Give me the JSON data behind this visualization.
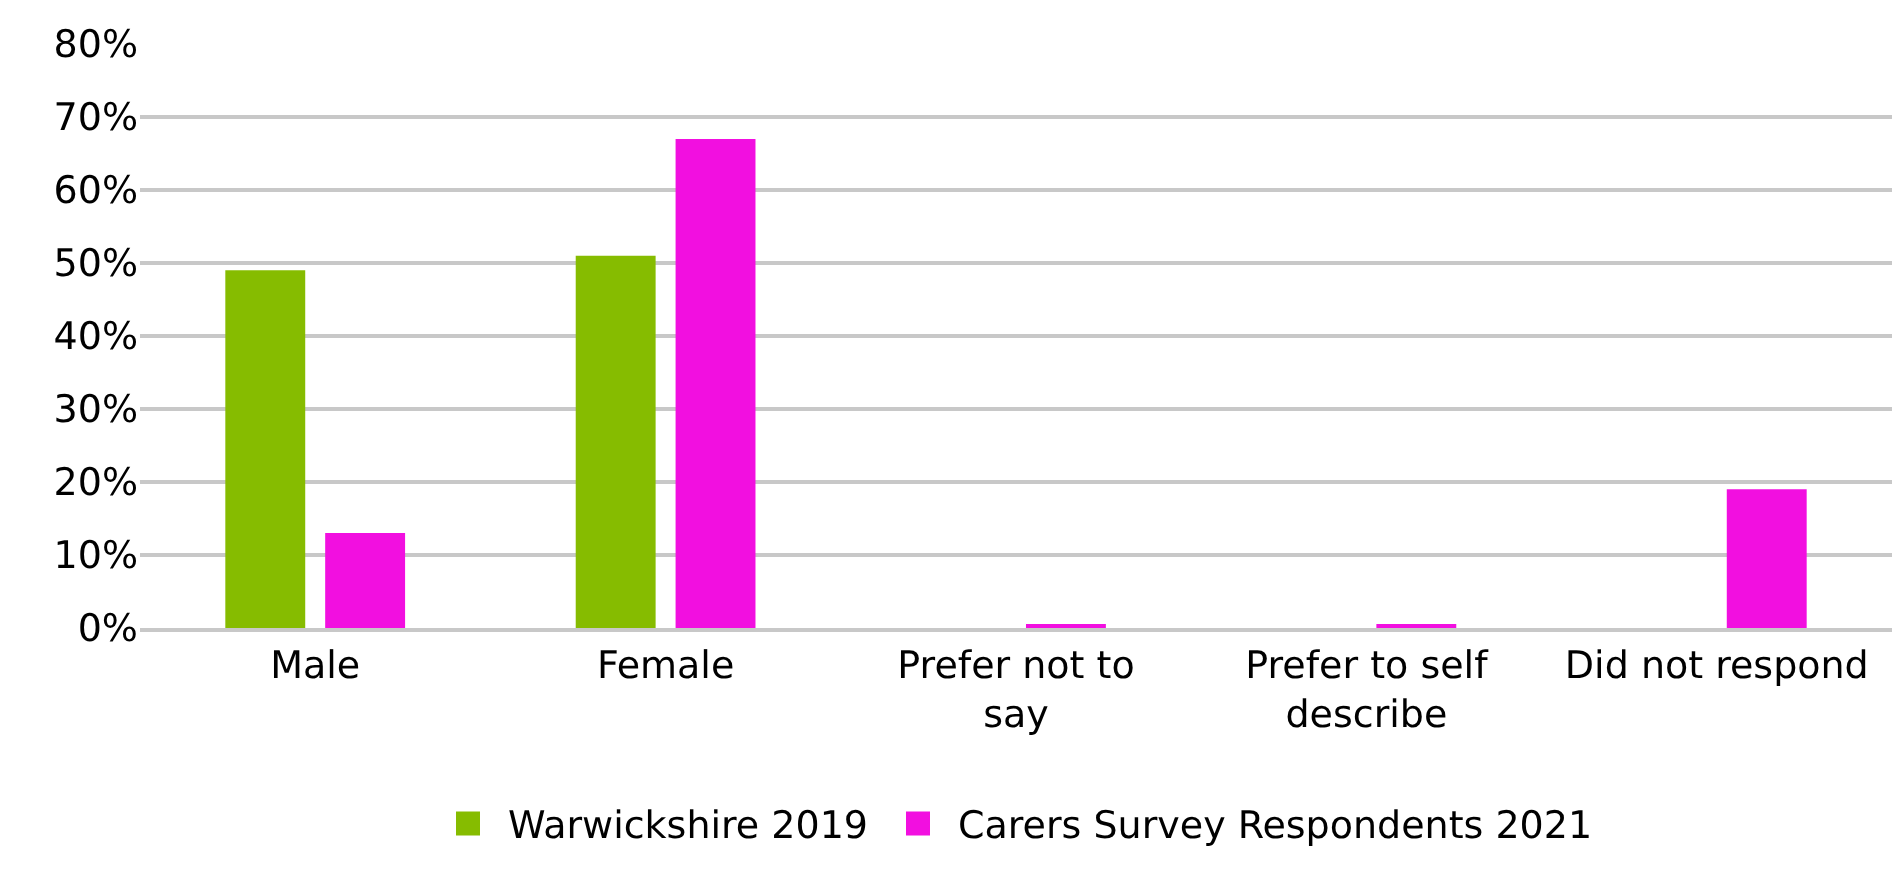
{
  "chart_data": {
    "type": "bar",
    "categories": [
      "Male",
      "Female",
      "Prefer not to\nsay",
      "Prefer to self\ndescribe",
      "Did not respond"
    ],
    "series": [
      {
        "name": "Warwickshire 2019",
        "color": "#86bc00",
        "values": [
          49,
          51,
          0,
          0,
          0
        ]
      },
      {
        "name": "Carers Survey Respondents 2021",
        "color": "#f20fe0",
        "values": [
          13,
          67,
          0.3,
          0.3,
          19
        ]
      }
    ],
    "ylim": [
      0,
      80
    ],
    "yticks": [
      {
        "value": 0,
        "label": "0%"
      },
      {
        "value": 10,
        "label": "10%"
      },
      {
        "value": 20,
        "label": "20%"
      },
      {
        "value": 30,
        "label": "30%"
      },
      {
        "value": 40,
        "label": "40%"
      },
      {
        "value": 50,
        "label": "50%"
      },
      {
        "value": 60,
        "label": "60%"
      },
      {
        "value": 70,
        "label": "70%"
      },
      {
        "value": 80,
        "label": "80%"
      }
    ],
    "grid": "y",
    "legend": "bottom"
  }
}
